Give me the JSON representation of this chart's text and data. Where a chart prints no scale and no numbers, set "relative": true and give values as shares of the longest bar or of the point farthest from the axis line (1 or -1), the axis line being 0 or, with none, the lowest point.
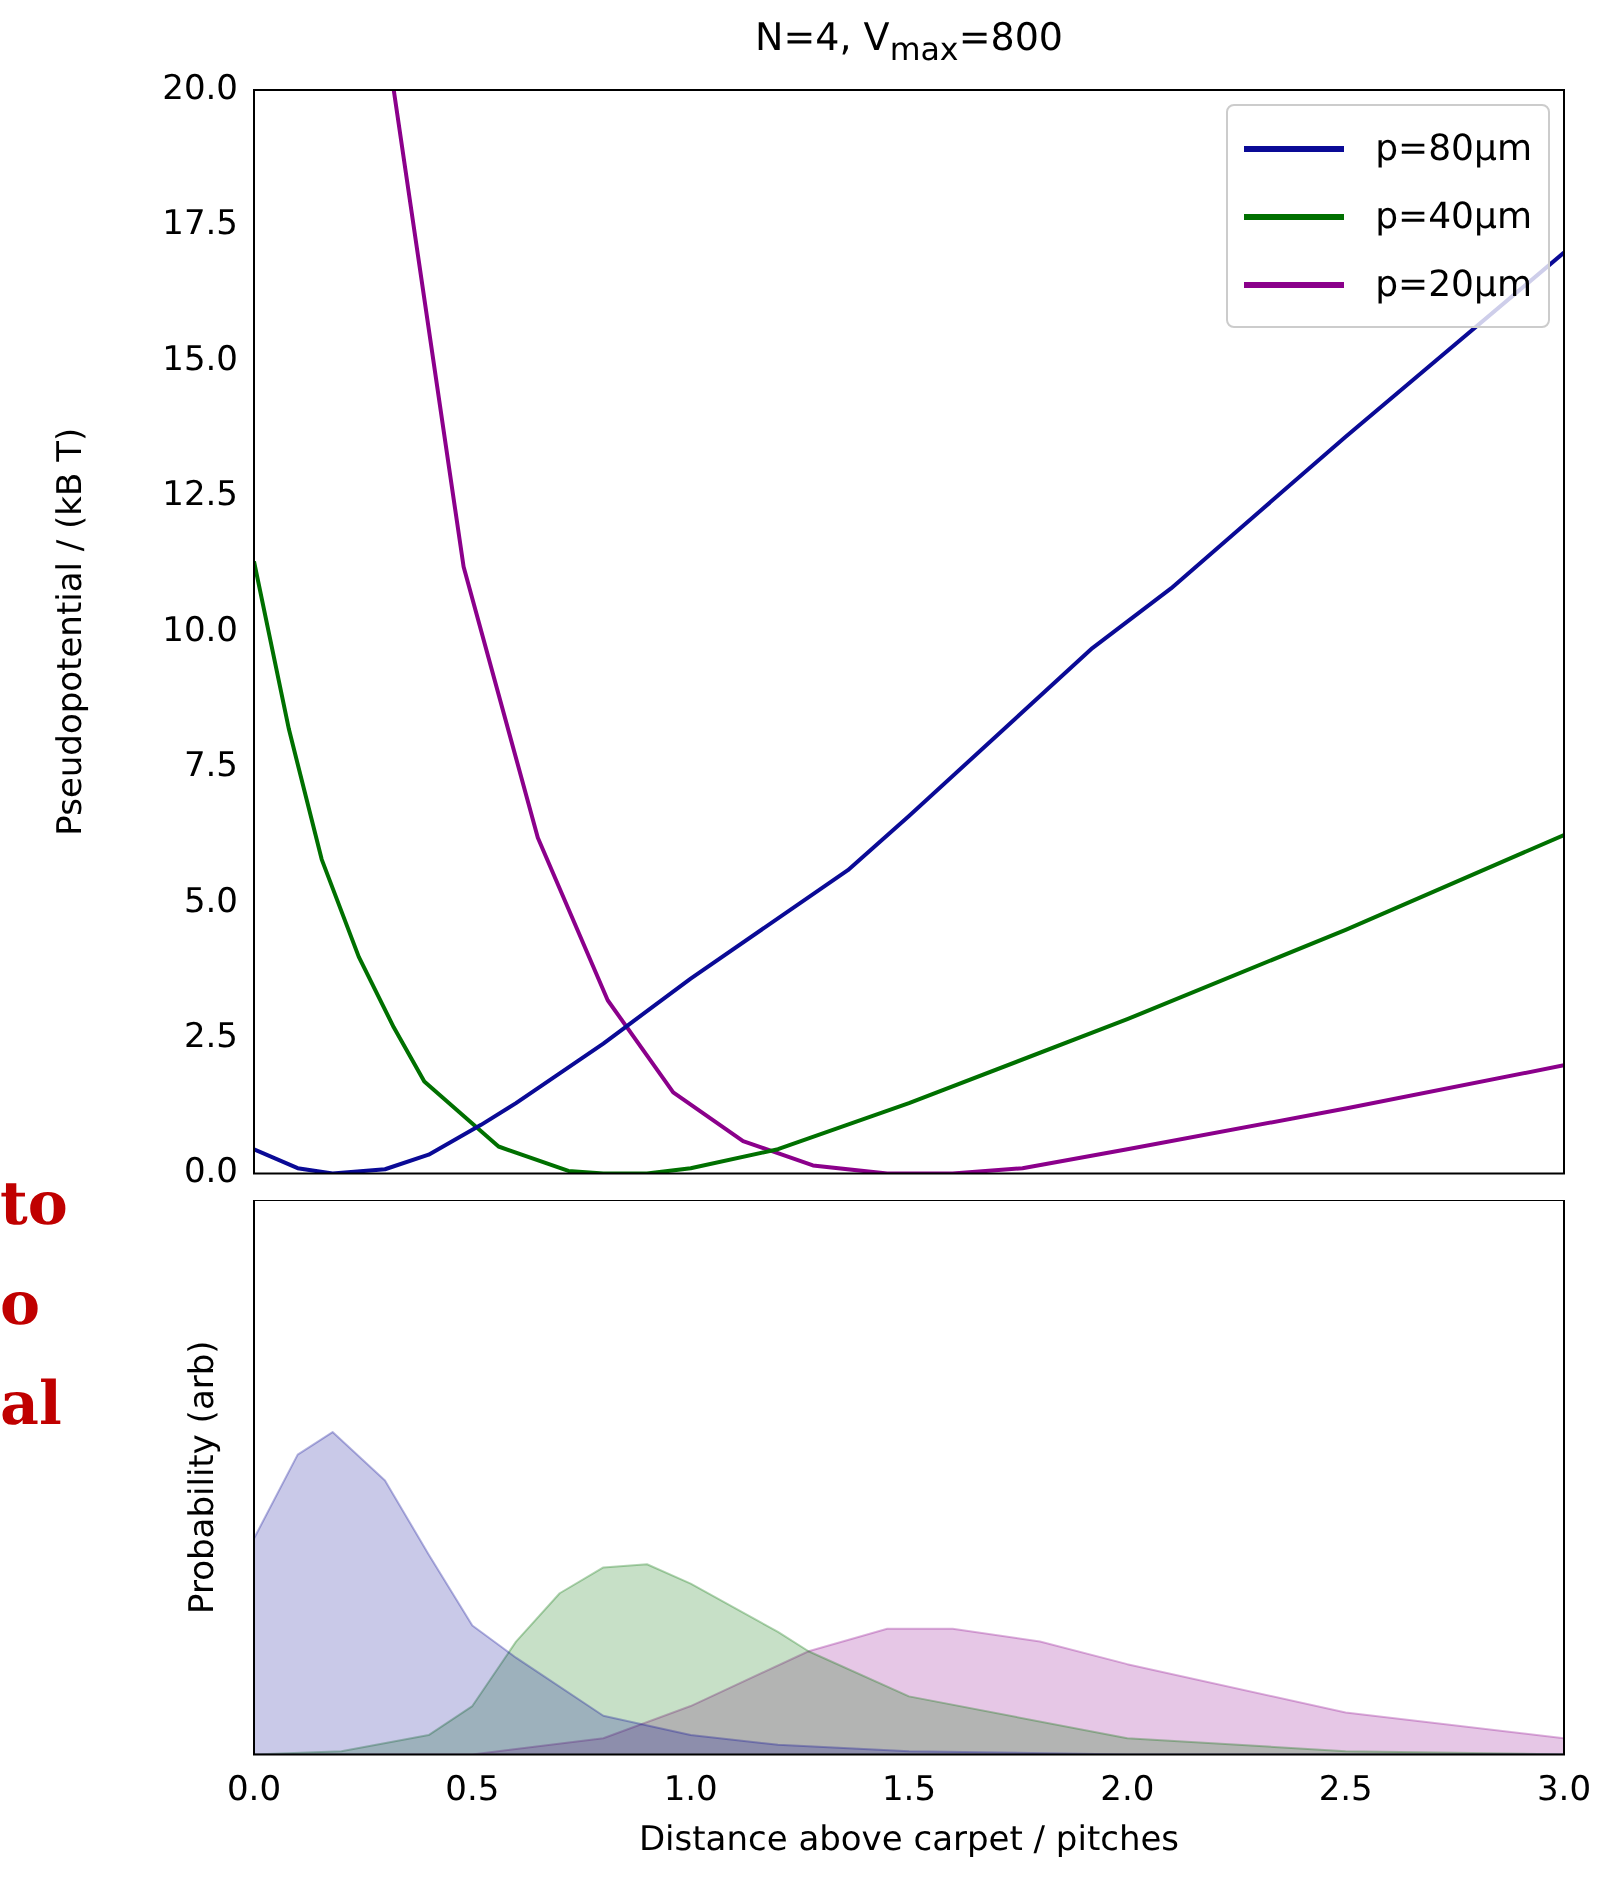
{
  "chart_data": [
    {
      "type": "line",
      "title": "N=4, V$_{max}$=800",
      "ylabel": "Pseudopotential / (kB T)",
      "xlim": [
        0,
        3
      ],
      "ylim": [
        0,
        20
      ],
      "tick_labels": "y",
      "legend": "top right",
      "grid": false,
      "marker": "none",
      "line_style": "solid",
      "yticks": [
        {
          "value": 0,
          "label": "0.0"
        },
        {
          "value": 2.5,
          "label": "2.5"
        },
        {
          "value": 5,
          "label": "5.0"
        },
        {
          "value": 7.5,
          "label": "7.5"
        },
        {
          "value": 10,
          "label": "10.0"
        },
        {
          "value": 12.5,
          "label": "12.5"
        },
        {
          "value": 15,
          "label": "15.0"
        },
        {
          "value": 17.5,
          "label": "17.5"
        },
        {
          "value": 20,
          "label": "20.0"
        }
      ],
      "series": [
        {
          "name": "p=80μm",
          "color": "#0a0a96",
          "x": [
            0,
            0.1,
            0.18,
            0.3,
            0.4,
            0.52,
            0.6,
            0.8,
            0.85,
            1.0,
            1.36,
            1.5,
            1.92,
            2.1,
            2.5,
            3.0
          ],
          "values": [
            0.45,
            0.1,
            0,
            0.08,
            0.35,
            0.9,
            1.3,
            2.4,
            2.7,
            3.6,
            5.6,
            6.6,
            9.7,
            10.8,
            13.6,
            17.0
          ]
        },
        {
          "name": "p=40μm",
          "color": "#007000",
          "x": [
            0,
            0.08,
            0.155,
            0.24,
            0.32,
            0.39,
            0.56,
            0.72,
            0.8,
            0.9,
            1.0,
            1.2,
            1.5,
            2.0,
            2.5,
            3.0
          ],
          "values": [
            11.3,
            8.2,
            5.8,
            4.0,
            2.7,
            1.7,
            0.5,
            0.05,
            0,
            0,
            0.1,
            0.45,
            1.3,
            2.85,
            4.5,
            6.25
          ]
        },
        {
          "name": "p=20μm",
          "color": "#8b008b",
          "x": [
            0.32,
            0.48,
            0.65,
            0.81,
            0.96,
            1.12,
            1.28,
            1.45,
            1.6,
            1.76,
            2.0,
            2.5,
            3.0
          ],
          "values": [
            20,
            11.2,
            6.2,
            3.2,
            1.5,
            0.6,
            0.15,
            0,
            0,
            0.1,
            0.45,
            1.2,
            2.0
          ]
        }
      ]
    },
    {
      "type": "area",
      "relative": true,
      "xlabel": "Distance above carpet / pitches",
      "ylabel": "Probability (arb)",
      "xlim": [
        0,
        3
      ],
      "tick_labels": "x",
      "grid": false,
      "legend": false,
      "xticks": [
        {
          "value": 0,
          "label": "0.0"
        },
        {
          "value": 0.5,
          "label": "0.5"
        },
        {
          "value": 1,
          "label": "1.0"
        },
        {
          "value": 1.5,
          "label": "1.5"
        },
        {
          "value": 2,
          "label": "2.0"
        },
        {
          "value": 2.5,
          "label": "2.5"
        },
        {
          "value": 3,
          "label": "3.0"
        }
      ],
      "annotations": [
        "to",
        "o",
        "al"
      ],
      "series": [
        {
          "color": "#0a0a96",
          "x": [
            0,
            0.1,
            0.18,
            0.3,
            0.4,
            0.5,
            0.57,
            0.6,
            0.8,
            1.0,
            1.2,
            1.5,
            2.0,
            3.0
          ],
          "values": [
            0.67,
            0.93,
            1,
            0.85,
            0.62,
            0.4,
            0.33,
            0.3,
            0.12,
            0.06,
            0.03,
            0.01,
            0,
            0
          ]
        },
        {
          "color": "#007000",
          "x": [
            0,
            0.2,
            0.4,
            0.5,
            0.6,
            0.7,
            0.8,
            0.9,
            1.0,
            1.2,
            1.27,
            1.5,
            2.0,
            2.5,
            3.0
          ],
          "values": [
            0,
            0.01,
            0.06,
            0.15,
            0.35,
            0.5,
            0.58,
            0.59,
            0.53,
            0.38,
            0.32,
            0.18,
            0.05,
            0.01,
            0
          ]
        },
        {
          "color": "#8b008b",
          "x": [
            0,
            0.5,
            0.8,
            1.0,
            1.27,
            1.45,
            1.6,
            1.8,
            2.0,
            2.5,
            3.0
          ],
          "values": [
            0,
            0,
            0.05,
            0.15,
            0.32,
            0.39,
            0.39,
            0.35,
            0.28,
            0.13,
            0.05
          ]
        }
      ]
    }
  ]
}
